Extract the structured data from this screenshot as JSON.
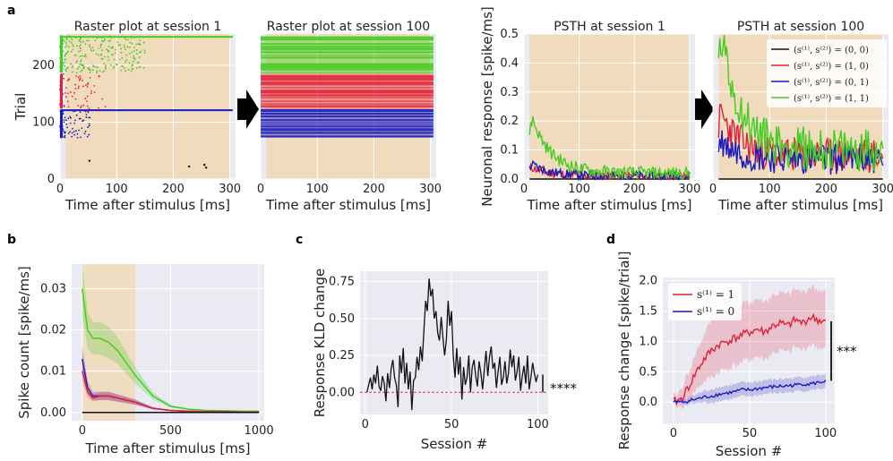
{
  "panel_labels": {
    "a": "a",
    "b": "b",
    "c": "c",
    "d": "d"
  },
  "colors": {
    "bg": "#eaeaf2",
    "shade": "#f0dcbc",
    "green": "#44cc22",
    "red": "#e02038",
    "blue": "#1a1abf",
    "black": "#111111",
    "grid": "#ffffff",
    "zero": "#e03030"
  },
  "chart_data": [
    {
      "id": "raster1",
      "type": "scatter",
      "title": "Raster plot at session 1",
      "xlabel": "Time after stimulus [ms]",
      "ylabel": "Trial",
      "xlim": [
        0,
        310
      ],
      "ylim": [
        0,
        255
      ],
      "xticks": [
        "0",
        "100",
        "200",
        "300"
      ],
      "yticks": [
        "0",
        "100",
        "200"
      ],
      "shade": [
        10,
        300
      ],
      "groups": [
        {
          "name": "(0,0)",
          "trial_range": [
            0,
            70
          ],
          "density": "sparse",
          "points": [
            [
              52,
              32
            ],
            [
              228,
              22
            ],
            [
              255,
              25
            ],
            [
              258,
              20
            ]
          ]
        },
        {
          "name": "(0,1)",
          "trial_range": [
            72,
            122
          ],
          "band_trial": 121,
          "extent_ms": 55
        },
        {
          "name": "(1,0)",
          "trial_range": [
            124,
            185
          ],
          "extent_ms": 80
        },
        {
          "name": "(1,1)",
          "trial_range": [
            187,
            252
          ],
          "band_trial": 250,
          "extent_ms": 150
        }
      ]
    },
    {
      "id": "raster100",
      "type": "scatter",
      "title": "Raster plot at session 100",
      "xlabel": "Time after stimulus [ms]",
      "ylabel": "",
      "xlim": [
        0,
        310
      ],
      "ylim": [
        0,
        255
      ],
      "xticks": [
        "0",
        "100",
        "200",
        "300"
      ],
      "yticks": [],
      "shade": [
        10,
        300
      ],
      "groups": [
        {
          "name": "(0,1)",
          "trial_range": [
            74,
            122
          ],
          "extent_ms": 300
        },
        {
          "name": "(1,0)",
          "trial_range": [
            124,
            186
          ],
          "extent_ms": 300
        },
        {
          "name": "(1,1)",
          "trial_range": [
            187,
            252
          ],
          "extent_ms": 300
        }
      ]
    },
    {
      "id": "psth1",
      "type": "line",
      "title": "PSTH at session 1",
      "xlabel": "Time after stimulus [ms]",
      "ylabel": "Neuronal response [spike/ms]",
      "xlim": [
        0,
        310
      ],
      "ylim": [
        0,
        0.5
      ],
      "xticks": [
        "0",
        "100",
        "200",
        "300"
      ],
      "yticks": [
        "0.0",
        "0.1",
        "0.2",
        "0.3",
        "0.4",
        "0.5"
      ],
      "shade": [
        10,
        300
      ],
      "series": [
        {
          "name": "(0,0)",
          "level": 0.0,
          "peak": 0.0
        },
        {
          "name": "(1,0)",
          "level": 0.01,
          "peak": 0.04
        },
        {
          "name": "(0,1)",
          "level": 0.01,
          "peak": 0.05
        },
        {
          "name": "(1,1)",
          "level": 0.02,
          "peak": 0.21
        }
      ]
    },
    {
      "id": "psth100",
      "type": "line",
      "title": "PSTH at session 100",
      "xlabel": "Time after stimulus [ms]",
      "ylabel": "",
      "xlim": [
        0,
        310
      ],
      "ylim": [
        0,
        0.5
      ],
      "xticks": [
        "0",
        "100",
        "200",
        "300"
      ],
      "yticks": [],
      "shade": [
        10,
        300
      ],
      "legend": {
        "position": "top-right",
        "entries": [
          {
            "label": "(s⁽¹⁾, s⁽²⁾) = (0, 0)",
            "color": "#111111"
          },
          {
            "label": "(s⁽¹⁾, s⁽²⁾) = (1, 0)",
            "color": "#e02038"
          },
          {
            "label": "(s⁽¹⁾, s⁽²⁾) = (0, 1)",
            "color": "#1a1abf"
          },
          {
            "label": "(s⁽¹⁾, s⁽²⁾) = (1, 1)",
            "color": "#44cc22"
          }
        ]
      },
      "series": [
        {
          "name": "(0,0)",
          "level": 0.0,
          "peak": 0.0
        },
        {
          "name": "(1,0)",
          "level": 0.08,
          "peak": 0.22
        },
        {
          "name": "(0,1)",
          "level": 0.07,
          "peak": 0.13
        },
        {
          "name": "(1,1)",
          "level": 0.1,
          "peak": 0.48
        }
      ]
    },
    {
      "id": "spike_count",
      "type": "line",
      "xlabel": "Time after stimulus [ms]",
      "ylabel": "Spike count [spike/ms]",
      "xlim": [
        -60,
        1030
      ],
      "ylim": [
        -0.002,
        0.036
      ],
      "xticks": [
        "0",
        "500",
        "1000"
      ],
      "yticks": [
        "0.00",
        "0.01",
        "0.02",
        "0.03"
      ],
      "shade": [
        0,
        300
      ],
      "series": [
        {
          "name": "green",
          "x": [
            0,
            30,
            60,
            100,
            150,
            200,
            250,
            300,
            400,
            500,
            600,
            700,
            800,
            900,
            1000
          ],
          "y": [
            0.03,
            0.02,
            0.018,
            0.018,
            0.017,
            0.015,
            0.012,
            0.009,
            0.004,
            0.0015,
            0.0008,
            0.0005,
            0.0004,
            0.0003,
            0.0003
          ]
        },
        {
          "name": "blue",
          "x": [
            0,
            30,
            60,
            100,
            150,
            200,
            250,
            300,
            400,
            500,
            600,
            700,
            800,
            900,
            1000
          ],
          "y": [
            0.013,
            0.006,
            0.004,
            0.004,
            0.004,
            0.0035,
            0.003,
            0.0025,
            0.001,
            0.0005,
            0.0003,
            0.0002,
            0.0002,
            0.0001,
            0.0001
          ]
        },
        {
          "name": "red",
          "x": [
            0,
            30,
            60,
            100,
            150,
            200,
            250,
            300,
            400,
            500,
            600,
            700,
            800,
            900,
            1000
          ],
          "y": [
            0.01,
            0.005,
            0.0035,
            0.004,
            0.004,
            0.0035,
            0.003,
            0.0025,
            0.001,
            0.0005,
            0.0003,
            0.0002,
            0.0002,
            0.0001,
            0.0001
          ]
        },
        {
          "name": "black",
          "x": [
            0,
            1000
          ],
          "y": [
            0.0,
            0.0
          ]
        }
      ]
    },
    {
      "id": "kld",
      "type": "line",
      "xlabel": "Session #",
      "ylabel": "Response KLD change",
      "xlim": [
        -3,
        106
      ],
      "ylim": [
        -0.15,
        0.82
      ],
      "xticks": [
        "0",
        "50",
        "100"
      ],
      "yticks": [
        "0.00",
        "0.25",
        "0.50",
        "0.75"
      ],
      "annotation": "****",
      "values": [
        0.0,
        0.05,
        0.1,
        0.02,
        0.12,
        0.06,
        0.18,
        0.04,
        0.01,
        0.11,
        0.06,
        -0.06,
        0.13,
        0.03,
        0.16,
        0.22,
        0.1,
        0.05,
        -0.1,
        0.25,
        0.13,
        0.3,
        0.06,
        0.2,
        0.02,
        0.14,
        -0.12,
        0.08,
        0.1,
        0.24,
        0.15,
        0.31,
        0.21,
        0.42,
        0.62,
        0.55,
        0.77,
        0.65,
        0.7,
        0.5,
        0.55,
        0.4,
        0.35,
        0.51,
        0.37,
        0.25,
        0.35,
        0.62,
        0.45,
        0.55,
        0.25,
        0.1,
        0.3,
        0.12,
        0.24,
        -0.05,
        0.17,
        0.05,
        0.1,
        0.25,
        0.0,
        0.17,
        0.22,
        0.11,
        0.04,
        0.21,
        0.13,
        0.02,
        0.15,
        0.28,
        0.11,
        0.24,
        0.31,
        0.16,
        0.2,
        0.03,
        0.14,
        0.24,
        0.05,
        0.1,
        0.21,
        0.06,
        0.13,
        0.29,
        0.17,
        0.25,
        0.08,
        0.14,
        0.24,
        0.01,
        0.11,
        0.18,
        0.06,
        0.25,
        0.02,
        0.1,
        0.2,
        0.13,
        0.07,
        0.12
      ]
    },
    {
      "id": "response_change",
      "type": "line",
      "xlabel": "Session #",
      "ylabel": "Response change [spike/trial]",
      "xlim": [
        -7,
        106
      ],
      "ylim": [
        -0.35,
        2.05
      ],
      "xticks": [
        "0",
        "50",
        "100"
      ],
      "yticks": [
        "0.0",
        "0.5",
        "1.0",
        "1.5",
        "2.0"
      ],
      "annotation": "***",
      "legend": {
        "position": "top-left",
        "entries": [
          {
            "label": "s⁽¹⁾ = 1",
            "color": "#e02038"
          },
          {
            "label": "s⁽¹⁾ = 0",
            "color": "#1a1abf"
          }
        ]
      },
      "series": [
        {
          "name": "s1=1",
          "x": [
            0,
            5,
            10,
            15,
            20,
            25,
            30,
            35,
            40,
            45,
            50,
            55,
            60,
            65,
            70,
            75,
            80,
            85,
            90,
            95,
            100
          ],
          "y": [
            0.0,
            0.05,
            0.25,
            0.5,
            0.7,
            0.85,
            0.95,
            1.0,
            1.05,
            1.1,
            1.15,
            1.2,
            1.15,
            1.25,
            1.3,
            1.25,
            1.35,
            1.3,
            1.4,
            1.35,
            1.32
          ],
          "band": 0.5
        },
        {
          "name": "s1=0",
          "x": [
            0,
            5,
            10,
            15,
            20,
            25,
            30,
            35,
            40,
            45,
            50,
            55,
            60,
            65,
            70,
            75,
            80,
            85,
            90,
            95,
            100
          ],
          "y": [
            0.0,
            0.0,
            0.02,
            0.05,
            0.08,
            0.1,
            0.13,
            0.15,
            0.17,
            0.2,
            0.2,
            0.22,
            0.24,
            0.25,
            0.26,
            0.27,
            0.28,
            0.3,
            0.3,
            0.32,
            0.35
          ],
          "band": 0.12
        }
      ]
    }
  ]
}
